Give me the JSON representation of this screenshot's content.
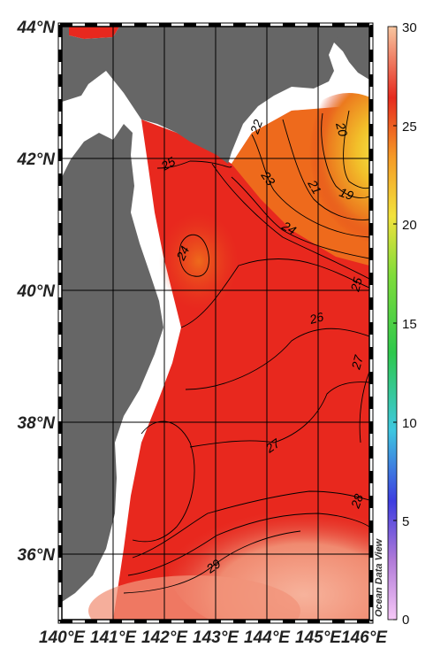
{
  "map": {
    "lat_labels": [
      "44°N",
      "42°N",
      "40°N",
      "38°N",
      "36°N"
    ],
    "lon_labels": [
      "140°E",
      "141°E",
      "142°E",
      "143°E",
      "144°E",
      "145°E",
      "146°E"
    ],
    "extent": {
      "lon_min": 140,
      "lon_max": 146,
      "lat_min": 35,
      "lat_max": 44
    },
    "colorbar": {
      "ticks": [
        "30",
        "25",
        "20",
        "15",
        "10",
        "5",
        "0"
      ],
      "vmin": 0,
      "vmax": 30
    },
    "credit": "Ocean Data View",
    "contour_labels": [
      "19",
      "20",
      "21",
      "22",
      "23",
      "24",
      "25",
      "25",
      "24",
      "26",
      "27",
      "27",
      "28",
      "29"
    ],
    "colors": {
      "land": "#666666",
      "warm": "#e8281e",
      "hot": "#f6a28a",
      "cool": "#f2b120",
      "cold": "#f6e24a"
    }
  }
}
